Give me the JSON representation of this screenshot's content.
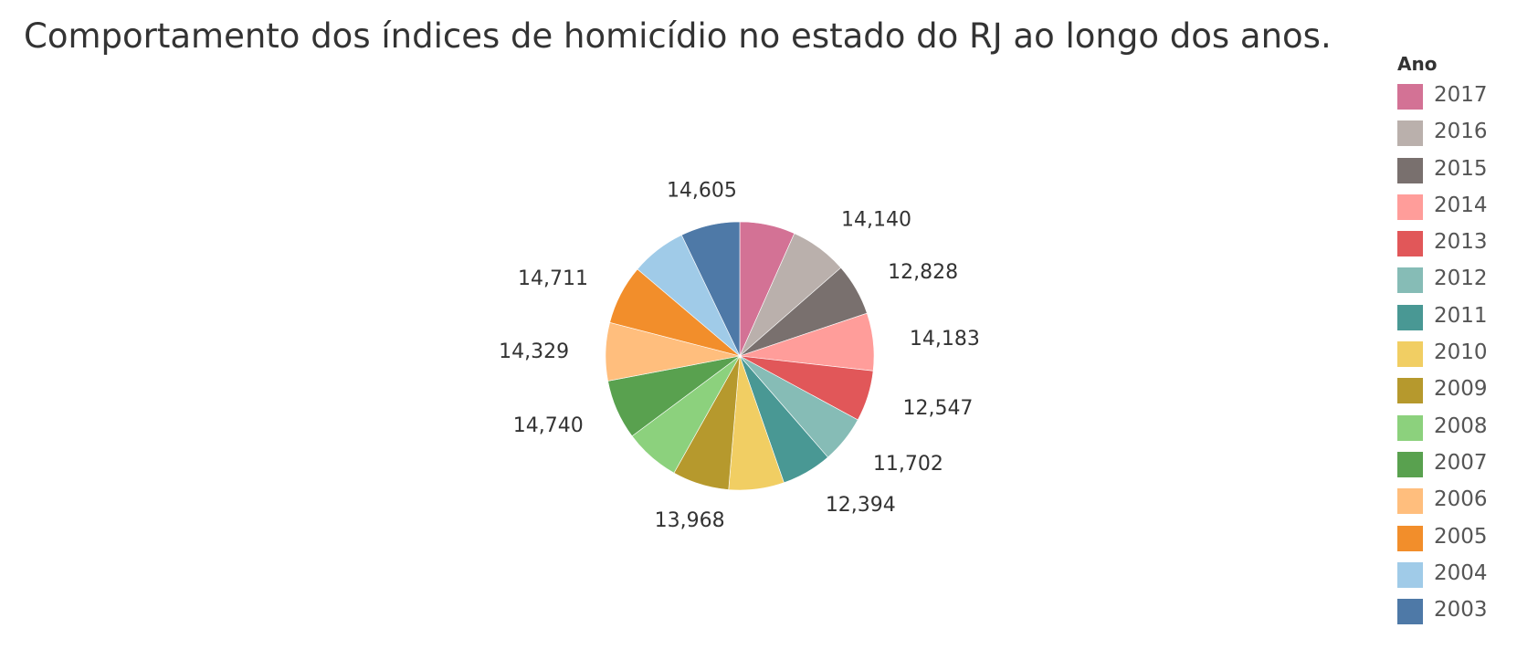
{
  "chart_data": {
    "type": "pie",
    "title": "Comportamento dos índices de homicídio no estado do RJ ao longo dos anos.",
    "legend": {
      "title": "Ano",
      "placement": "right"
    },
    "slices": [
      {
        "year": "2017",
        "value": null,
        "label": "",
        "color": "#d37295"
      },
      {
        "year": "2016",
        "value": 14140,
        "label": "14,140",
        "color": "#bab0ac"
      },
      {
        "year": "2015",
        "value": 12828,
        "label": "12,828",
        "color": "#79706e"
      },
      {
        "year": "2014",
        "value": 14183,
        "label": "14,183",
        "color": "#ff9d9a"
      },
      {
        "year": "2013",
        "value": 12547,
        "label": "12,547",
        "color": "#e15759"
      },
      {
        "year": "2012",
        "value": 11702,
        "label": "11,702",
        "color": "#86bcb6"
      },
      {
        "year": "2011",
        "value": 12394,
        "label": "12,394",
        "color": "#499894"
      },
      {
        "year": "2010",
        "value": null,
        "label": "",
        "color": "#f1ce63"
      },
      {
        "year": "2009",
        "value": 13968,
        "label": "13,968",
        "color": "#b6992d"
      },
      {
        "year": "2008",
        "value": null,
        "label": "",
        "color": "#8cd17d"
      },
      {
        "year": "2007",
        "value": 14740,
        "label": "14,740",
        "color": "#59a14f"
      },
      {
        "year": "2006",
        "value": 14329,
        "label": "14,329",
        "color": "#ffbe7d"
      },
      {
        "year": "2005",
        "value": 14711,
        "label": "14,711",
        "color": "#f28e2b"
      },
      {
        "year": "2004",
        "value": null,
        "label": "",
        "color": "#a0cbe8"
      },
      {
        "year": "2003",
        "value": 14605,
        "label": "14,605",
        "color": "#4e79a7"
      }
    ]
  }
}
